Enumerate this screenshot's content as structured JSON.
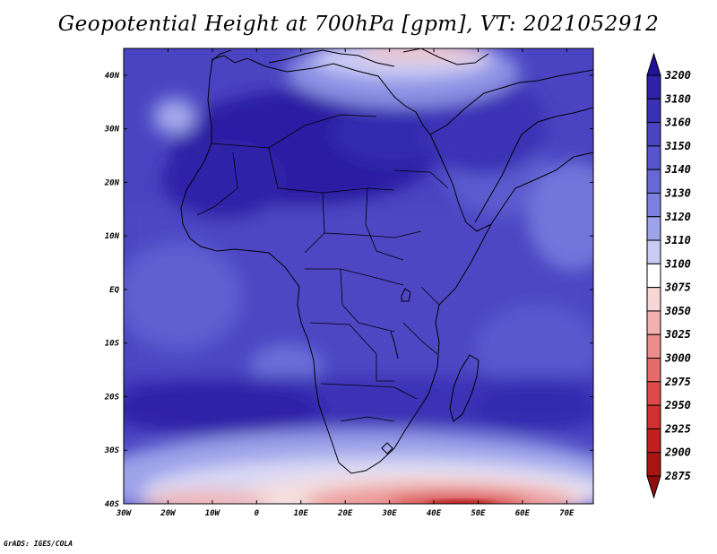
{
  "title": "Geopotential Height at 700hPa [gpm], VT: 2021052912",
  "credit": "GrADS: IGES/COLA",
  "map": {
    "lon_range": [
      -30,
      76
    ],
    "lat_range": [
      -40,
      45
    ],
    "lon_ticks": [
      "30W",
      "20W",
      "10W",
      "0",
      "10E",
      "20E",
      "30E",
      "40E",
      "50E",
      "60E",
      "70E"
    ],
    "lat_ticks": [
      "40N",
      "30N",
      "20N",
      "10N",
      "EQ",
      "10S",
      "20S",
      "30S",
      "40S"
    ]
  },
  "colorbar": {
    "levels": [
      "3200",
      "3180",
      "3160",
      "3150",
      "3140",
      "3130",
      "3120",
      "3110",
      "3100",
      "3075",
      "3050",
      "3025",
      "3000",
      "2975",
      "2950",
      "2925",
      "2900",
      "2875"
    ],
    "colors": [
      "#22129a",
      "#2d22a8",
      "#3a31b5",
      "#4a44c2",
      "#5754cc",
      "#6768d6",
      "#7c80df",
      "#9da2e9",
      "#c9cbf4",
      "#ffffff",
      "#f7d6d6",
      "#f2b0b0",
      "#ec8d8d",
      "#e56b6b",
      "#de4a4a",
      "#d33131",
      "#c21f1f",
      "#a81414",
      "#8c0e0e"
    ]
  }
}
